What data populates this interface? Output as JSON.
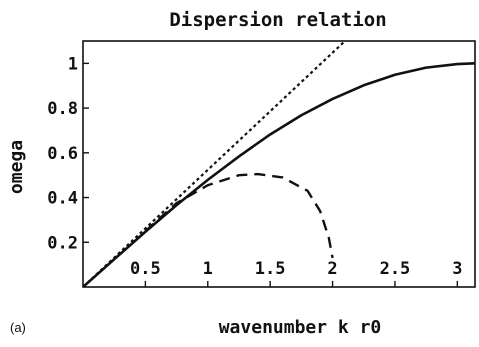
{
  "chart_data": {
    "type": "line",
    "title": "Dispersion relation",
    "xlabel": "wavenumber k r0",
    "ylabel": "omega",
    "panel_label": "(a)",
    "xlim": [
      0,
      3.14159
    ],
    "ylim": [
      0,
      1.1
    ],
    "xticks": [
      0.5,
      1,
      1.5,
      2,
      2.5,
      3
    ],
    "xtick_labels": [
      "0.5",
      "1",
      "1.5",
      "2",
      "2.5",
      "3"
    ],
    "yticks": [
      0.2,
      0.4,
      0.6,
      0.8,
      1
    ],
    "ytick_labels": [
      "0.2",
      "0.4",
      "0.6",
      "0.8",
      "1"
    ],
    "grid": false,
    "series": [
      {
        "style": "solid",
        "color": "#111111",
        "x": [
          0,
          0.25,
          0.5,
          0.75,
          1.0,
          1.25,
          1.5,
          1.75,
          2.0,
          2.25,
          2.5,
          2.75,
          3.0,
          3.14159
        ],
        "y": [
          0,
          0.124,
          0.247,
          0.366,
          0.479,
          0.584,
          0.682,
          0.768,
          0.841,
          0.902,
          0.949,
          0.981,
          0.997,
          1.0
        ]
      },
      {
        "style": "dotted",
        "color": "#111111",
        "x": [
          0,
          2.1
        ],
        "y": [
          0,
          1.1
        ]
      },
      {
        "style": "dashed",
        "color": "#111111",
        "x": [
          0.5,
          0.75,
          1.0,
          1.25,
          1.4,
          1.6,
          1.8,
          1.9,
          1.97,
          2.0
        ],
        "y": [
          0.25,
          0.375,
          0.455,
          0.5,
          0.505,
          0.49,
          0.43,
          0.34,
          0.22,
          0.13
        ]
      }
    ]
  }
}
